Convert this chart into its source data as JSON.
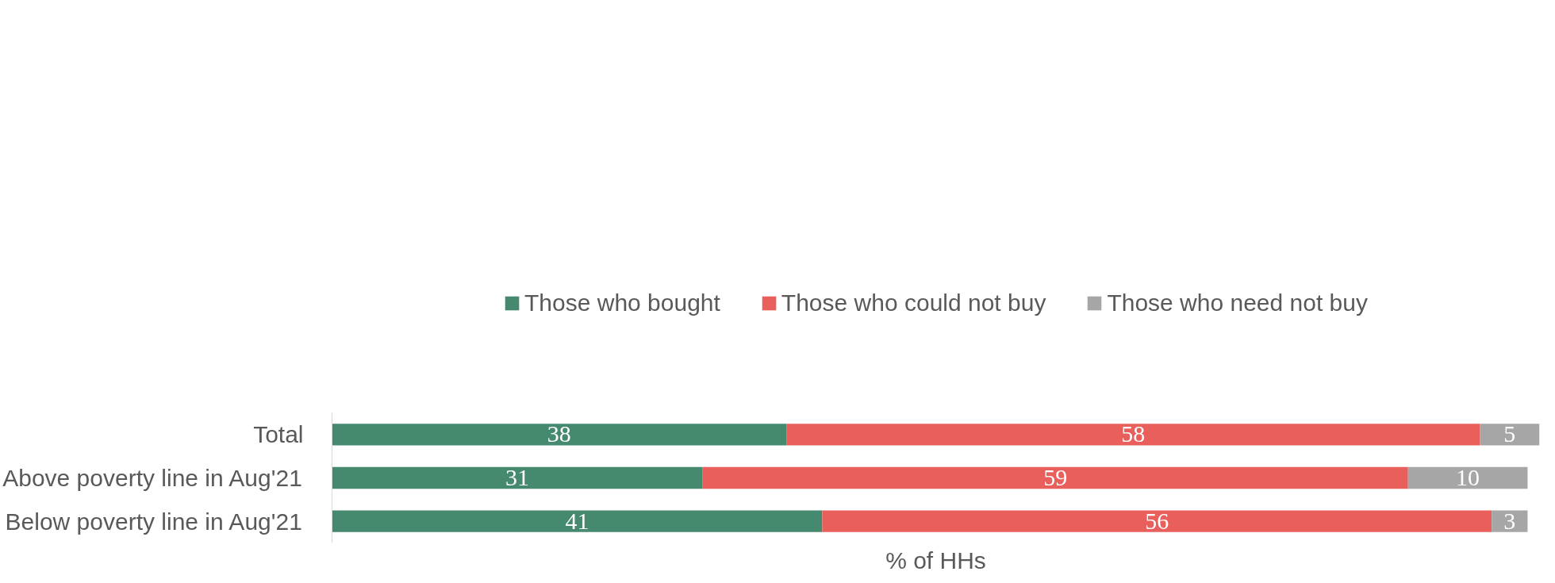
{
  "chart_data": {
    "type": "bar",
    "orientation": "horizontal",
    "stacked": true,
    "data_labels": true,
    "legend": "top",
    "grid": false,
    "tick_labels": "y",
    "xlabel": "% of HHs",
    "categories": [
      "Total",
      "Above poverty line in Aug'21",
      "Below poverty line in Aug'21"
    ],
    "xlim": [
      0,
      101
    ],
    "series": [
      {
        "name": "Those who bought",
        "color": "#458a6e",
        "values": [
          38,
          31,
          41
        ]
      },
      {
        "name": "Those who could not buy",
        "color": "#e95f5c",
        "values": [
          58,
          59,
          56
        ]
      },
      {
        "name": "Those who need not buy",
        "color": "#a6a6a6",
        "values": [
          5,
          10,
          3
        ]
      }
    ]
  }
}
